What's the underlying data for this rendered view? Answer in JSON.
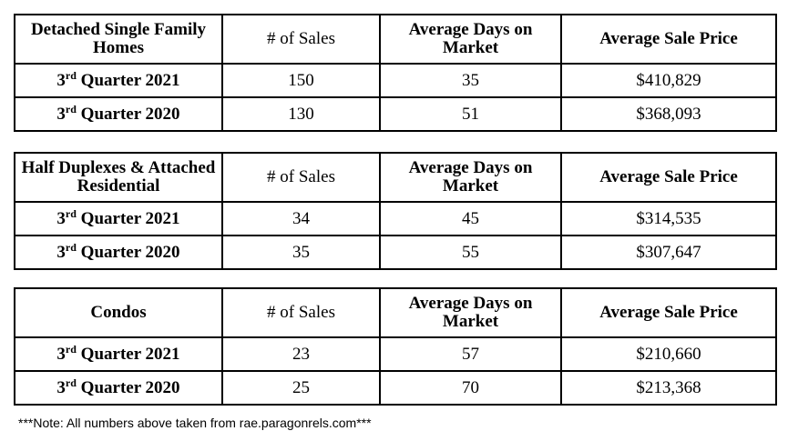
{
  "headers": {
    "sales": "# of Sales",
    "days": "Average Days on Market",
    "price": "Average Sale Price"
  },
  "tables": [
    {
      "category": "Detached Single Family Homes",
      "rows": [
        {
          "quarter_num": "3",
          "quarter_suffix": "rd",
          "quarter_text": " Quarter 2021",
          "sales": "150",
          "days": "35",
          "price": "$410,829"
        },
        {
          "quarter_num": "3",
          "quarter_suffix": "rd",
          "quarter_text": " Quarter 2020",
          "sales": "130",
          "days": "51",
          "price": "$368,093"
        }
      ]
    },
    {
      "category": "Half Duplexes & Attached Residential",
      "rows": [
        {
          "quarter_num": "3",
          "quarter_suffix": "rd",
          "quarter_text": " Quarter 2021",
          "sales": "34",
          "days": "45",
          "price": "$314,535"
        },
        {
          "quarter_num": "3",
          "quarter_suffix": "rd",
          "quarter_text": " Quarter 2020",
          "sales": "35",
          "days": "55",
          "price": "$307,647"
        }
      ]
    },
    {
      "category": "Condos",
      "rows": [
        {
          "quarter_num": "3",
          "quarter_suffix": "rd",
          "quarter_text": " Quarter 2021",
          "sales": "23",
          "days": "57",
          "price": "$210,660"
        },
        {
          "quarter_num": "3",
          "quarter_suffix": "rd",
          "quarter_text": " Quarter 2020",
          "sales": "25",
          "days": "70",
          "price": "$213,368"
        }
      ]
    }
  ],
  "note": "***Note: All numbers above taken from rae.paragonrels.com***"
}
